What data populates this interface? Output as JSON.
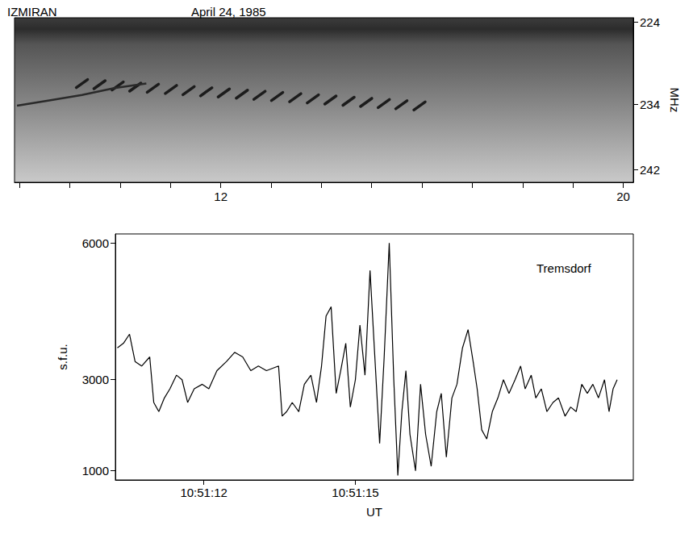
{
  "chart_data": [
    {
      "type": "line",
      "title": "IZMIRAN",
      "subtitle": "April 24, 1985",
      "y_label": "MHz",
      "xlim": [
        7.9,
        20.2
      ],
      "xticks": [
        12,
        20
      ],
      "ylim": [
        243.5,
        223.5
      ],
      "yticks": [
        224,
        234,
        242
      ],
      "grid": false,
      "series": [
        {
          "type": "line",
          "color": "#2a2a2a",
          "x": [
            7.95,
            8.59,
            9.24,
            9.88,
            10.52
          ],
          "values": [
            234.19,
            233.54,
            232.89,
            232.06,
            231.5
          ]
        },
        {
          "type": "scatter",
          "marker": "stripe",
          "color": "#1c1c1c",
          "x": [
            9.24,
            9.59,
            9.95,
            10.3,
            10.65,
            11.01,
            11.36,
            11.71,
            12.06,
            12.42,
            12.77,
            13.12,
            13.48,
            13.83,
            14.18,
            14.54,
            14.89,
            15.24,
            15.59,
            15.95
          ],
          "values": [
            231.5,
            231.64,
            231.79,
            231.93,
            232.07,
            232.22,
            232.36,
            232.5,
            232.64,
            232.79,
            232.93,
            233.07,
            233.22,
            233.36,
            233.5,
            233.65,
            233.79,
            233.93,
            234.07,
            234.22
          ]
        }
      ]
    },
    {
      "type": "line",
      "x_label": "UT",
      "y_label": "s.f.u.",
      "annotations": [
        {
          "text": "Tremsdorf"
        }
      ],
      "xlim": [
        10.25,
        20.5
      ],
      "xticks": [
        {
          "value": 12,
          "label": "10:51:12"
        },
        {
          "value": 15,
          "label": "10:51:15"
        }
      ],
      "ylim": [
        800,
        6200
      ],
      "yticks": [
        1000,
        3000,
        6000
      ],
      "grid": false,
      "series": [
        {
          "type": "line",
          "color": "#000000",
          "x": [
            10.29,
            10.41,
            10.53,
            10.64,
            10.77,
            10.93,
            11.01,
            11.11,
            11.22,
            11.33,
            11.46,
            11.57,
            11.68,
            11.81,
            11.97,
            12.1,
            12.26,
            12.45,
            12.61,
            12.77,
            12.93,
            13.08,
            13.24,
            13.48,
            13.55,
            13.64,
            13.75,
            13.88,
            13.99,
            14.12,
            14.23,
            14.33,
            14.42,
            14.52,
            14.62,
            14.71,
            14.81,
            14.9,
            15.0,
            15.09,
            15.19,
            15.29,
            15.38,
            15.48,
            15.57,
            15.67,
            15.76,
            15.84,
            15.92,
            16.0,
            16.08,
            16.19,
            16.29,
            16.39,
            16.5,
            16.61,
            16.7,
            16.8,
            16.91,
            17.01,
            17.12,
            17.23,
            17.33,
            17.41,
            17.5,
            17.6,
            17.71,
            17.82,
            17.93,
            18.04,
            18.16,
            18.27,
            18.36,
            18.48,
            18.57,
            18.68,
            18.79,
            18.91,
            19.02,
            19.15,
            19.26,
            19.37,
            19.48,
            19.59,
            19.7,
            19.81,
            19.93,
            20.02,
            20.1,
            20.18
          ],
          "values": [
            3700,
            3800,
            4000,
            3400,
            3300,
            3500,
            2500,
            2300,
            2600,
            2800,
            3100,
            3000,
            2500,
            2800,
            2900,
            2800,
            3200,
            3400,
            3600,
            3500,
            3200,
            3300,
            3200,
            3300,
            2200,
            2300,
            2500,
            2300,
            2900,
            3100,
            2500,
            3300,
            4400,
            4600,
            2700,
            3200,
            3800,
            2400,
            3000,
            4200,
            3100,
            5400,
            3600,
            1600,
            3500,
            6000,
            3000,
            900,
            2300,
            3200,
            1800,
            1000,
            2900,
            1800,
            1100,
            2300,
            2700,
            1300,
            2600,
            2900,
            3700,
            4100,
            3400,
            2800,
            1900,
            1700,
            2300,
            2600,
            3000,
            2700,
            3000,
            3300,
            2800,
            3100,
            2600,
            2800,
            2300,
            2500,
            2600,
            2200,
            2400,
            2300,
            2900,
            2700,
            2900,
            2600,
            3000,
            2300,
            2800,
            3000
          ]
        }
      ]
    }
  ]
}
